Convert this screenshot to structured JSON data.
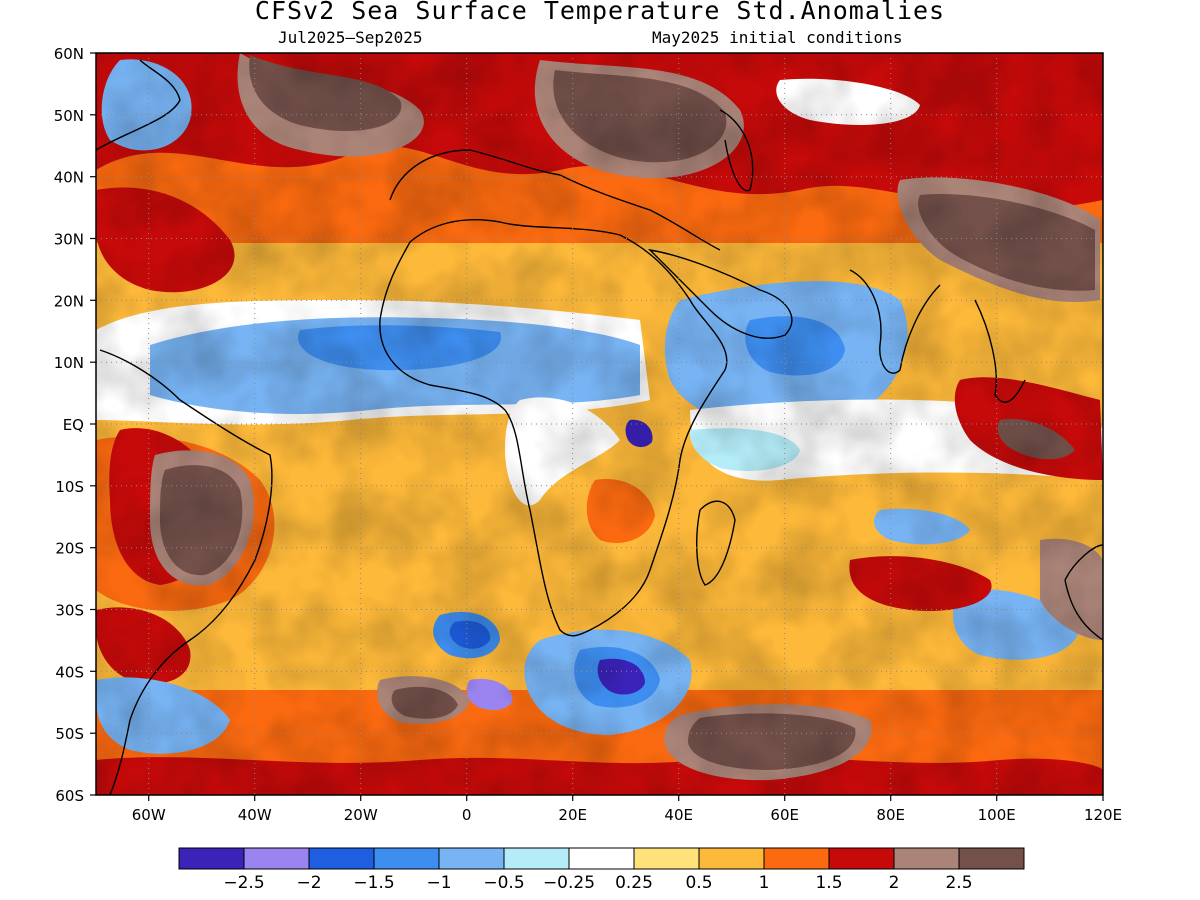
{
  "title": "CFSv2 Sea Surface Temperature Std.Anomalies",
  "subtitle_left": "Jul2025–Sep2025",
  "subtitle_right": "May2025 initial conditions",
  "map": {
    "lon_range": [
      -70,
      120
    ],
    "lat_range": [
      -60,
      60
    ],
    "lat_ticks": [
      "60N",
      "50N",
      "40N",
      "30N",
      "20N",
      "10N",
      "EQ",
      "10S",
      "20S",
      "30S",
      "40S",
      "50S",
      "60S"
    ],
    "lon_ticks": [
      "60W",
      "40W",
      "20W",
      "0",
      "20E",
      "40E",
      "60E",
      "80E",
      "100E",
      "120E"
    ],
    "gridlines": "dotted"
  },
  "colorbar": {
    "colors": [
      "#3b22b8",
      "#9a84f0",
      "#1e5ee0",
      "#3e8ef0",
      "#78b4f4",
      "#b4ecf8",
      "#ffffff",
      "#ffe27a",
      "#fdb93a",
      "#fb6a10",
      "#c60a0a",
      "#ab8478",
      "#73504a"
    ],
    "labels": [
      "−2.5",
      "−2",
      "−1.5",
      "−1",
      "−0.5",
      "−0.25",
      "0.25",
      "0.5",
      "1",
      "1.5",
      "2",
      "2.5"
    ]
  }
}
